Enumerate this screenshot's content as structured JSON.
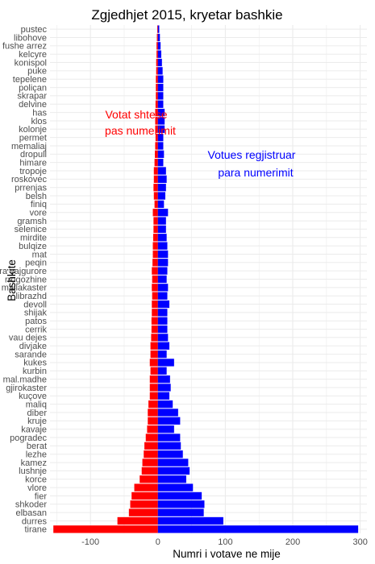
{
  "chart_data": {
    "type": "bar",
    "orientation": "horizontal",
    "title": "Zgjedhjet 2015, kryetar bashkie",
    "xlabel": "Numri i votave ne mije",
    "ylabel": "Bashkite",
    "xlim": [
      -160,
      310
    ],
    "xticks": [
      -100,
      0,
      100,
      200,
      300
    ],
    "grid": true,
    "categories": [
      "pustec",
      "libohove",
      "fushe arrez",
      "kelcyre",
      "konispol",
      "puke",
      "tepelene",
      "poliçan",
      "skrapar",
      "delvine",
      "has",
      "klos",
      "kolonje",
      "permet",
      "memaliaj",
      "dropull",
      "himare",
      "tropoje",
      "roskovec",
      "prrenjas",
      "belsh",
      "finiq",
      "vore",
      "gramsh",
      "selenice",
      "mirdite",
      "bulqize",
      "mat",
      "peqin",
      "ura vajgurore",
      "rrogozhine",
      "mallakaster",
      "librazhd",
      "devoll",
      "shijak",
      "patos",
      "cerrik",
      "vau dejes",
      "divjake",
      "sarande",
      "kukes",
      "kurbin",
      "mal.madhe",
      "gjirokaster",
      "kuçove",
      "maliq",
      "diber",
      "kruje",
      "kavaje",
      "pogradec",
      "berat",
      "lezhe",
      "kamez",
      "lushnje",
      "korce",
      "vlore",
      "fier",
      "shkoder",
      "elbasan",
      "durres",
      "tirane"
    ],
    "series": [
      {
        "color": "#ff0000",
        "values": [
          -1,
          -1.5,
          -2,
          -2,
          -2.5,
          -2.5,
          -3,
          -3,
          -3,
          -3.5,
          -4,
          -4,
          -4,
          -3.5,
          -4,
          -4.5,
          -5,
          -6,
          -6,
          -6.5,
          -6,
          -5,
          -7.5,
          -6.5,
          -6.5,
          -7,
          -7.5,
          -7.5,
          -8,
          -9,
          -8.5,
          -9,
          -8.5,
          -9,
          -9,
          -9.5,
          -9.5,
          -10,
          -11,
          -11,
          -12,
          -11,
          -12,
          -12,
          -12,
          -14,
          -15,
          -15,
          -16,
          -18,
          -20,
          -21,
          -23,
          -24,
          -27,
          -35,
          -39,
          -41,
          -43,
          -60,
          -155
        ]
      },
      {
        "color": "#0000ff",
        "values": [
          2,
          3,
          4,
          5,
          6,
          7,
          8,
          8,
          8,
          8,
          10,
          10,
          10,
          8,
          8,
          9,
          8,
          12,
          13,
          12,
          11,
          9,
          15,
          12,
          12,
          13,
          14,
          15,
          15,
          14,
          13,
          15,
          14,
          17,
          14,
          14,
          14,
          15,
          17,
          13,
          24,
          13,
          18,
          19,
          17,
          22,
          30,
          33,
          24,
          33,
          34,
          37,
          45,
          47,
          42,
          52,
          65,
          69,
          68,
          97,
          297
        ]
      }
    ],
    "annotations": [
      {
        "text": "Votat shtese",
        "color": "#ff0000"
      },
      {
        "text": "pas numerimit",
        "color": "#ff0000"
      },
      {
        "text": "Votues regjistruar",
        "color": "#0000ff"
      },
      {
        "text": "para numerimit",
        "color": "#0000ff"
      }
    ]
  }
}
